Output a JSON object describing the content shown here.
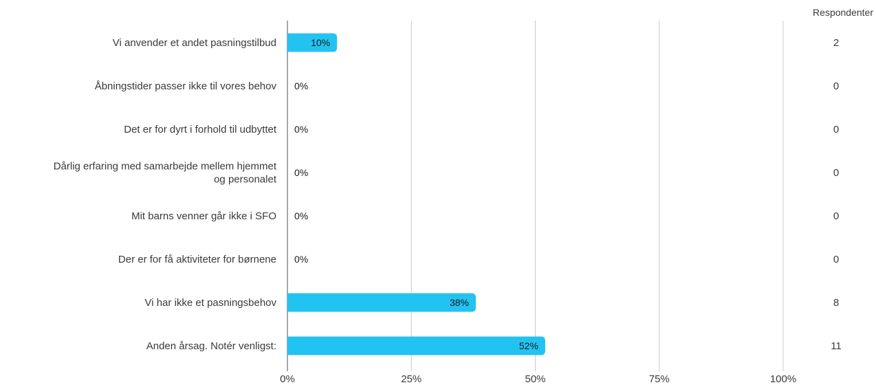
{
  "chart_data": {
    "type": "bar",
    "orientation": "horizontal",
    "categories": [
      [
        "Vi anvender et andet pasningstilbud"
      ],
      [
        "Åbningstider passer ikke til vores behov"
      ],
      [
        "Det er for dyrt i forhold til udbyttet"
      ],
      [
        "Dårlig erfaring med samarbejde mellem hjemmet",
        "og personalet"
      ],
      [
        "Mit barns venner går ikke i SFO"
      ],
      [
        "Der er for få aktiviteter for børnene"
      ],
      [
        "Vi har ikke et pasningsbehov"
      ],
      [
        "Anden årsag. Notér venligst:"
      ]
    ],
    "values": [
      10,
      0,
      0,
      0,
      0,
      0,
      38,
      52
    ],
    "value_labels": [
      "10%",
      "0%",
      "0%",
      "0%",
      "0%",
      "0%",
      "38%",
      "52%"
    ],
    "respondents_header": "Respondenter",
    "respondents": [
      "2",
      "0",
      "0",
      "0",
      "0",
      "0",
      "8",
      "11"
    ],
    "xlim": [
      0,
      100
    ],
    "x_ticks": [
      0,
      25,
      50,
      75,
      100
    ],
    "x_tick_labels": [
      "0%",
      "25%",
      "50%",
      "75%",
      "100%"
    ],
    "grid": true,
    "bar_color": "#22c3f0",
    "grid_color": "#c8c8c8",
    "axis_color": "#8a8a8a"
  }
}
